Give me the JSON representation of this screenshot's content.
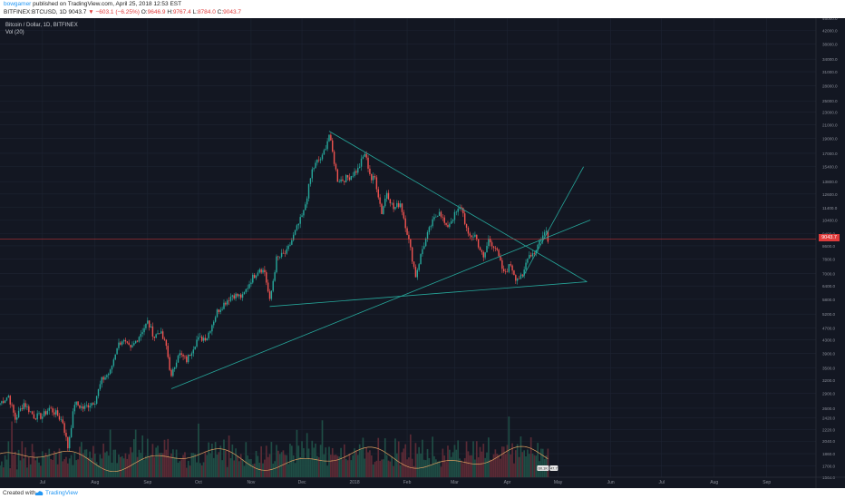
{
  "header": {
    "username": "bowgamer",
    "published_text": "published on TradingView.com, April 25, 2018 12:53 EST",
    "symbol": "BITFINEX:BTCUSD, 1D",
    "last": "9043.7",
    "arrow": "▼",
    "change": "−603.1 (−6.25%)",
    "open_label": "O:",
    "open": "9646.9",
    "high_label": "H:",
    "high": "9767.4",
    "low_label": "L:",
    "low": "8784.0",
    "close_label": "C:",
    "close": "9043.7"
  },
  "legend": {
    "title": "Bitcoin / Dollar, 1D, BITFINEX",
    "volume": "Vol (20)"
  },
  "footer": {
    "created": "Created with",
    "brand": "TradingView"
  },
  "colors": {
    "background": "#131722",
    "up": "#26a69a",
    "down": "#ef5350",
    "trendline": "#26a69a",
    "price_line": "#e03b3b",
    "volume_ma": "#e0a060"
  },
  "chart_data": {
    "type": "candlestick",
    "title": "Bitcoin / Dollar, 1D, BITFINEX",
    "log_scale": true,
    "ylim": [
      1564.0,
      46000.0
    ],
    "x_range": [
      "2017-06-06",
      "2018-09-30"
    ],
    "y_ticks": [
      "46000.0",
      "42000.0",
      "38000.0",
      "34000.0",
      "31000.0",
      "28000.0",
      "25000.0",
      "23000.0",
      "21000.0",
      "19000.0",
      "17000.0",
      "15400.0",
      "13800.0",
      "12600.0",
      "11400.0",
      "10400.0",
      "9400.0",
      "8600.0",
      "7800.0",
      "7000.0",
      "6400.0",
      "5800.0",
      "5200.0",
      "4700.0",
      "4300.0",
      "3900.0",
      "3500.0",
      "3200.0",
      "2900.0",
      "2600.0",
      "2420.0",
      "2220.0",
      "2040.0",
      "1860.0",
      "1700.0",
      "1564.0"
    ],
    "x_ticks": [
      {
        "label": "Jul",
        "date": "2017-07-01"
      },
      {
        "label": "Aug",
        "date": "2017-08-01"
      },
      {
        "label": "Sep",
        "date": "2017-09-01"
      },
      {
        "label": "Oct",
        "date": "2017-10-01"
      },
      {
        "label": "Nov",
        "date": "2017-11-01"
      },
      {
        "label": "Dec",
        "date": "2017-12-01"
      },
      {
        "label": "2018",
        "date": "2018-01-01"
      },
      {
        "label": "Feb",
        "date": "2018-02-01"
      },
      {
        "label": "Mar",
        "date": "2018-03-01"
      },
      {
        "label": "Apr",
        "date": "2018-04-01"
      },
      {
        "label": "May",
        "date": "2018-05-01"
      },
      {
        "label": "Jun",
        "date": "2018-06-01"
      },
      {
        "label": "Jul",
        "date": "2018-07-01"
      },
      {
        "label": "Aug",
        "date": "2018-08-01"
      },
      {
        "label": "Sep",
        "date": "2018-09-01"
      }
    ],
    "last_price": "9043.7",
    "last_price_value": 9043.7,
    "volume_last": [
      "60.1K",
      "47.7"
    ],
    "price_path": [
      [
        "2017-06-06",
        2700
      ],
      [
        "2017-06-11",
        2850
      ],
      [
        "2017-06-15",
        2400
      ],
      [
        "2017-06-20",
        2700
      ],
      [
        "2017-06-26",
        2450
      ],
      [
        "2017-07-01",
        2450
      ],
      [
        "2017-07-05",
        2600
      ],
      [
        "2017-07-09",
        2500
      ],
      [
        "2017-07-13",
        2350
      ],
      [
        "2017-07-16",
        1950
      ],
      [
        "2017-07-20",
        2700
      ],
      [
        "2017-07-25",
        2600
      ],
      [
        "2017-08-01",
        2750
      ],
      [
        "2017-08-05",
        3200
      ],
      [
        "2017-08-10",
        3400
      ],
      [
        "2017-08-14",
        4100
      ],
      [
        "2017-08-17",
        4300
      ],
      [
        "2017-08-22",
        4000
      ],
      [
        "2017-08-26",
        4350
      ],
      [
        "2017-09-01",
        4900
      ],
      [
        "2017-09-05",
        4400
      ],
      [
        "2017-09-08",
        4600
      ],
      [
        "2017-09-12",
        4100
      ],
      [
        "2017-09-15",
        3250
      ],
      [
        "2017-09-19",
        3900
      ],
      [
        "2017-09-24",
        3700
      ],
      [
        "2017-09-30",
        4300
      ],
      [
        "2017-10-06",
        4400
      ],
      [
        "2017-10-12",
        5300
      ],
      [
        "2017-10-17",
        5700
      ],
      [
        "2017-10-21",
        6000
      ],
      [
        "2017-10-27",
        5900
      ],
      [
        "2017-11-01",
        6700
      ],
      [
        "2017-11-06",
        7300
      ],
      [
        "2017-11-09",
        7100
      ],
      [
        "2017-11-12",
        5700
      ],
      [
        "2017-11-16",
        7800
      ],
      [
        "2017-11-22",
        8200
      ],
      [
        "2017-11-28",
        9800
      ],
      [
        "2017-12-02",
        11000
      ],
      [
        "2017-12-07",
        15000
      ],
      [
        "2017-12-10",
        16000
      ],
      [
        "2017-12-13",
        16500
      ],
      [
        "2017-12-17",
        19500
      ],
      [
        "2017-12-22",
        14000
      ],
      [
        "2017-12-25",
        14000
      ],
      [
        "2017-12-29",
        14300
      ],
      [
        "2018-01-03",
        15100
      ],
      [
        "2018-01-07",
        17000
      ],
      [
        "2018-01-11",
        14000
      ],
      [
        "2018-01-13",
        14200
      ],
      [
        "2018-01-17",
        11000
      ],
      [
        "2018-01-20",
        12800
      ],
      [
        "2018-01-24",
        11300
      ],
      [
        "2018-01-28",
        11800
      ],
      [
        "2018-02-01",
        9500
      ],
      [
        "2018-02-06",
        6900
      ],
      [
        "2018-02-10",
        8400
      ],
      [
        "2018-02-15",
        10000
      ],
      [
        "2018-02-20",
        11200
      ],
      [
        "2018-02-24",
        9800
      ],
      [
        "2018-03-01",
        10800
      ],
      [
        "2018-03-05",
        11500
      ],
      [
        "2018-03-09",
        9200
      ],
      [
        "2018-03-13",
        9300
      ],
      [
        "2018-03-18",
        7800
      ],
      [
        "2018-03-21",
        9000
      ],
      [
        "2018-03-25",
        8500
      ],
      [
        "2018-03-30",
        7000
      ],
      [
        "2018-04-03",
        7500
      ],
      [
        "2018-04-06",
        6800
      ],
      [
        "2018-04-10",
        6800
      ],
      [
        "2018-04-13",
        8000
      ],
      [
        "2018-04-17",
        8200
      ],
      [
        "2018-04-20",
        8900
      ],
      [
        "2018-04-24",
        9600
      ],
      [
        "2018-04-25",
        9043.7
      ]
    ],
    "volume_levels": [
      0.3,
      0.4,
      0.2,
      0.7,
      0.3,
      0.5,
      0.3,
      0.9,
      0.3,
      0.4,
      0.2,
      0.6,
      0.3,
      0.8,
      0.4,
      0.5,
      0.3,
      0.6,
      0.4,
      0.7,
      0.4,
      0.5,
      0.7,
      0.4,
      0.3,
      0.8,
      0.4,
      0.5,
      0.3,
      0.6,
      0.4,
      0.3,
      0.5,
      0.4,
      0.3,
      0.7,
      0.4,
      0.3,
      0.5,
      0.4,
      0.3,
      0.6,
      0.4,
      0.3,
      0.5,
      0.4,
      0.3,
      0.6,
      0.5,
      0.4,
      0.7,
      0.4,
      0.3,
      0.5,
      0.4,
      0.6,
      0.5,
      0.4,
      0.3,
      0.5,
      0.4,
      0.7,
      0.5,
      0.6,
      0.4,
      0.9,
      0.5,
      0.4,
      0.6,
      0.5,
      0.4,
      0.8,
      0.5,
      0.4,
      0.6,
      0.5,
      0.7,
      0.5,
      0.4,
      0.6,
      1.0,
      0.6,
      0.5,
      0.4,
      0.6,
      0.5,
      0.4,
      0.7,
      0.5,
      0.4,
      0.6,
      0.5,
      0.4,
      0.6,
      0.5,
      0.4,
      0.5,
      0.6,
      0.4,
      0.7,
      0.5,
      0.4,
      0.6,
      0.5,
      0.7,
      0.4,
      0.5,
      0.4,
      0.6,
      0.5
    ],
    "trendlines": [
      {
        "from": [
          "2017-09-15",
          3000
        ],
        "to": [
          "2018-05-20",
          10400
        ]
      },
      {
        "from": [
          "2017-11-12",
          5500
        ],
        "to": [
          "2018-05-18",
          6600
        ]
      },
      {
        "from": [
          "2017-12-17",
          20000
        ],
        "to": [
          "2018-05-18",
          6600
        ]
      },
      {
        "from": [
          "2018-04-10",
          6800
        ],
        "to": [
          "2018-05-16",
          15400
        ]
      }
    ]
  }
}
